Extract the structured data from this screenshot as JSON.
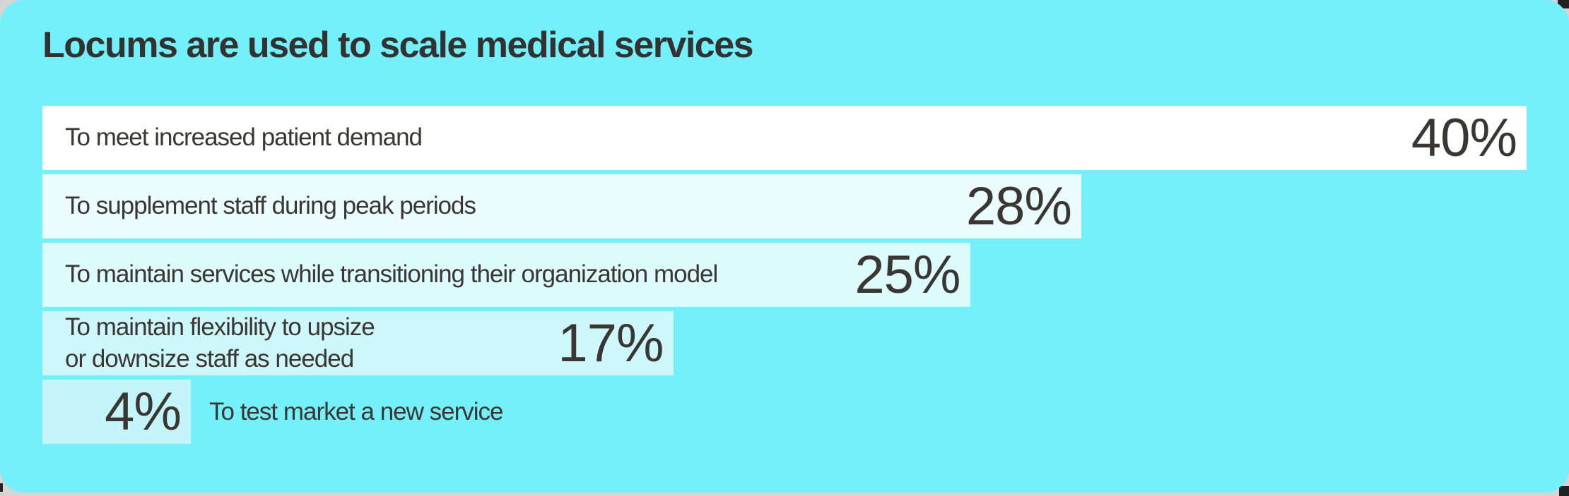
{
  "title": "Locums are used to scale medical services",
  "colors": {
    "page_background": "#d5d5d5",
    "card_background": "#74f0fa",
    "text": "#3a3632",
    "title_text": "#343230",
    "corner_accent_dark": "#222222",
    "bar_fills": [
      "#ffffff",
      "#eafcfe",
      "#ddfafd",
      "#cdf7fb",
      "#c4f5fa"
    ]
  },
  "chart_data": {
    "type": "bar",
    "orientation": "horizontal",
    "title": "Locums are used to scale medical services",
    "categories": [
      "To meet increased patient demand",
      "To supplement staff during peak periods",
      "To maintain services while transitioning their organization model",
      "To maintain flexibility to upsize or downsize staff as needed",
      "To test market a new service"
    ],
    "values": [
      40,
      28,
      25,
      17,
      4
    ],
    "unit": "%",
    "xlim": [
      0,
      40
    ],
    "grid": false,
    "legend": "none",
    "value_label_position": "end-of-bar",
    "bars": [
      {
        "label": "To meet increased patient demand",
        "value": 40,
        "display": "40%",
        "color": "#ffffff",
        "label_position": "inside"
      },
      {
        "label": "To supplement staff during peak periods",
        "value": 28,
        "display": "28%",
        "color": "#eafcfe",
        "label_position": "inside"
      },
      {
        "label": "To maintain services while transitioning their organization model",
        "value": 25,
        "display": "25%",
        "color": "#ddfafd",
        "label_position": "inside"
      },
      {
        "label": "To maintain flexibility to upsize\nor downsize staff as needed",
        "value": 17,
        "display": "17%",
        "color": "#cdf7fb",
        "label_position": "inside"
      },
      {
        "label": "To test market a new service",
        "value": 4,
        "display": "4%",
        "color": "#c4f5fa",
        "label_position": "outside"
      }
    ]
  }
}
